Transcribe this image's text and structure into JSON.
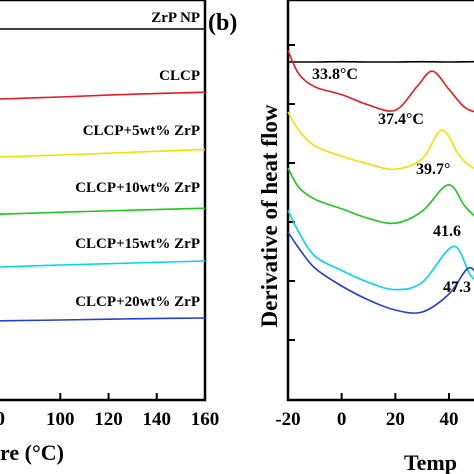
{
  "chart_data": [
    {
      "type": "line",
      "panel_label": "",
      "xlabel": "re (°C)",
      "ylabel": "",
      "xlim": [
        75,
        160
      ],
      "x_ticks": [
        "100",
        "120",
        "140",
        "160"
      ],
      "x_tick_values": [
        100,
        120,
        140,
        160
      ],
      "partial_tick_glyph": "0",
      "series": [
        {
          "name": "ZrP NP",
          "color": "#000000",
          "x": [
            75,
            160
          ],
          "y": [
            0.1,
            0.1
          ]
        },
        {
          "name": "CLCP",
          "color": "#e8191f",
          "x": [
            75,
            100,
            130,
            160
          ],
          "y": [
            -0.05,
            0.0,
            0.07,
            0.12
          ]
        },
        {
          "name": "CLCP+5wt% ZrP",
          "color": "#f2e000",
          "x": [
            75,
            100,
            130,
            160
          ],
          "y": [
            -0.05,
            0.0,
            0.07,
            0.14
          ]
        },
        {
          "name": "CLCP+10wt% ZrP",
          "color": "#1ec81e",
          "x": [
            75,
            100,
            130,
            160
          ],
          "y": [
            -0.03,
            0.02,
            0.07,
            0.12
          ]
        },
        {
          "name": "CLCP+15wt% ZrP",
          "color": "#00d6f0",
          "x": [
            75,
            100,
            130,
            160
          ],
          "y": [
            -0.05,
            0.0,
            0.05,
            0.1
          ]
        },
        {
          "name": "CLCP+20wt% ZrP",
          "color": "#1f3fd8",
          "x": [
            75,
            100,
            130,
            160
          ],
          "y": [
            -0.02,
            0.0,
            0.03,
            0.05
          ]
        }
      ]
    },
    {
      "type": "line",
      "panel_label": "(b)",
      "xlabel": "Temp",
      "ylabel": "Derivative of heat flow",
      "xlim": [
        -22,
        58
      ],
      "x_ticks": [
        "-20",
        "0",
        "20",
        "40"
      ],
      "x_tick_values": [
        -20,
        0,
        20,
        40
      ],
      "annotations": [
        "33.8°C",
        "37.4°C",
        "39.7°",
        "41.6",
        "47.3"
      ],
      "series": [
        {
          "color": "#000000",
          "x": [
            -20,
            -10,
            0,
            10,
            20,
            30,
            40,
            50,
            58
          ],
          "y": [
            0.0,
            0.0,
            0.1,
            0.0,
            0.0,
            0.1,
            0.0,
            0.1,
            0.0
          ]
        },
        {
          "color": "#e8191f",
          "x": [
            -20,
            -16,
            -10,
            0,
            10,
            20,
            28,
            33.8,
            40,
            46,
            52,
            58
          ],
          "y": [
            0.6,
            -0.3,
            -0.8,
            -1.1,
            -1.5,
            -1.7,
            -0.8,
            -0.2,
            -0.9,
            -1.6,
            -1.8,
            -1.8
          ]
        },
        {
          "color": "#f2e000",
          "x": [
            -20,
            -16,
            -10,
            0,
            10,
            20,
            30,
            37.4,
            44,
            50,
            58
          ],
          "y": [
            0.5,
            -0.2,
            -0.8,
            -1.2,
            -1.5,
            -1.7,
            -1.3,
            -0.2,
            -1.2,
            -1.7,
            -1.8
          ]
        },
        {
          "color": "#1ec81e",
          "x": [
            -20,
            -16,
            -10,
            0,
            10,
            20,
            30,
            39.7,
            46,
            52,
            58
          ],
          "y": [
            0.5,
            -0.3,
            -0.8,
            -1.2,
            -1.6,
            -1.8,
            -1.3,
            -0.2,
            -1.1,
            -1.7,
            -1.8
          ]
        },
        {
          "color": "#00d6f0",
          "x": [
            -20,
            -16,
            -10,
            0,
            10,
            20,
            30,
            41.6,
            48,
            54,
            58
          ],
          "y": [
            0.9,
            0.0,
            -1.0,
            -1.6,
            -2.1,
            -2.4,
            -2.1,
            -0.6,
            -1.8,
            -2.4,
            -2.5
          ]
        },
        {
          "color": "#1f3fd8",
          "x": [
            -20,
            -16,
            -10,
            0,
            10,
            20,
            30,
            40,
            47.3,
            52,
            58
          ],
          "y": [
            1.8,
            1.0,
            0.0,
            -0.9,
            -1.6,
            -2.1,
            -2.2,
            -1.3,
            0.0,
            -0.6,
            -1.0
          ]
        }
      ]
    }
  ]
}
